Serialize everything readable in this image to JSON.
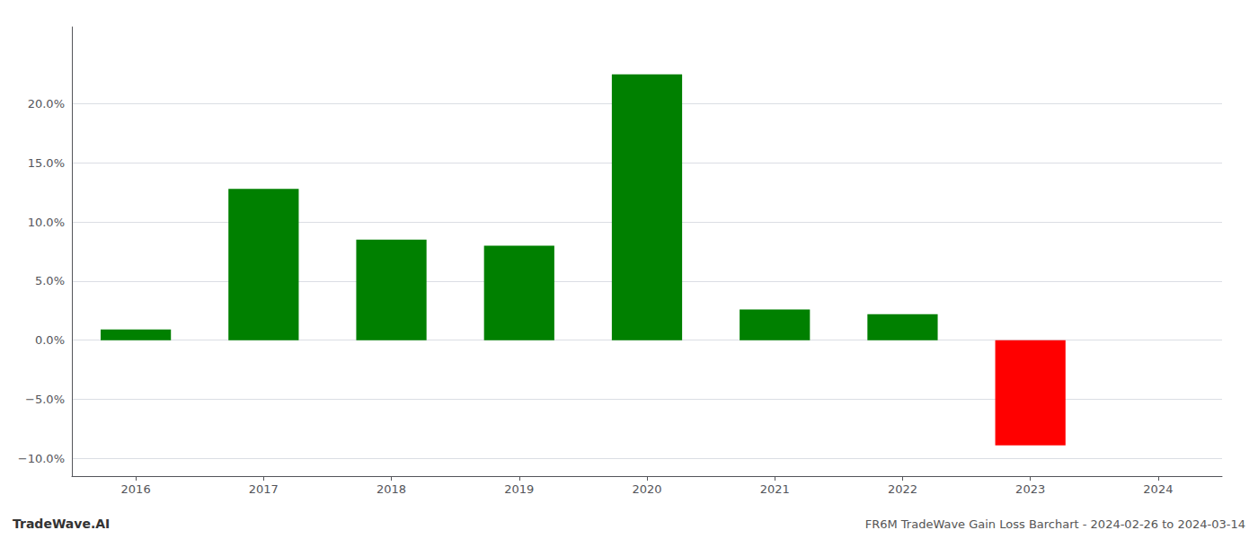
{
  "chart_data": {
    "type": "bar",
    "categories": [
      "2016",
      "2017",
      "2018",
      "2019",
      "2020",
      "2021",
      "2022",
      "2023",
      "2024"
    ],
    "values": [
      0.009,
      0.128,
      0.085,
      0.08,
      0.225,
      0.026,
      0.022,
      -0.089,
      null
    ],
    "colors": [
      "#008000",
      "#008000",
      "#008000",
      "#008000",
      "#008000",
      "#008000",
      "#008000",
      "#ff0000",
      null
    ],
    "ylim": [
      -0.115,
      0.265
    ],
    "yticks": [
      {
        "value": -0.1,
        "label": "−10.0%"
      },
      {
        "value": -0.05,
        "label": "−5.0%"
      },
      {
        "value": 0.0,
        "label": "0.0%"
      },
      {
        "value": 0.05,
        "label": "5.0%"
      },
      {
        "value": 0.1,
        "label": "10.0%"
      },
      {
        "value": 0.15,
        "label": "15.0%"
      },
      {
        "value": 0.2,
        "label": "20.0%"
      }
    ],
    "grid": true,
    "annotations": [
      "TradeWave.AI",
      "FR6M TradeWave Gain Loss Barchart - 2024-02-26 to 2024-03-14"
    ]
  }
}
